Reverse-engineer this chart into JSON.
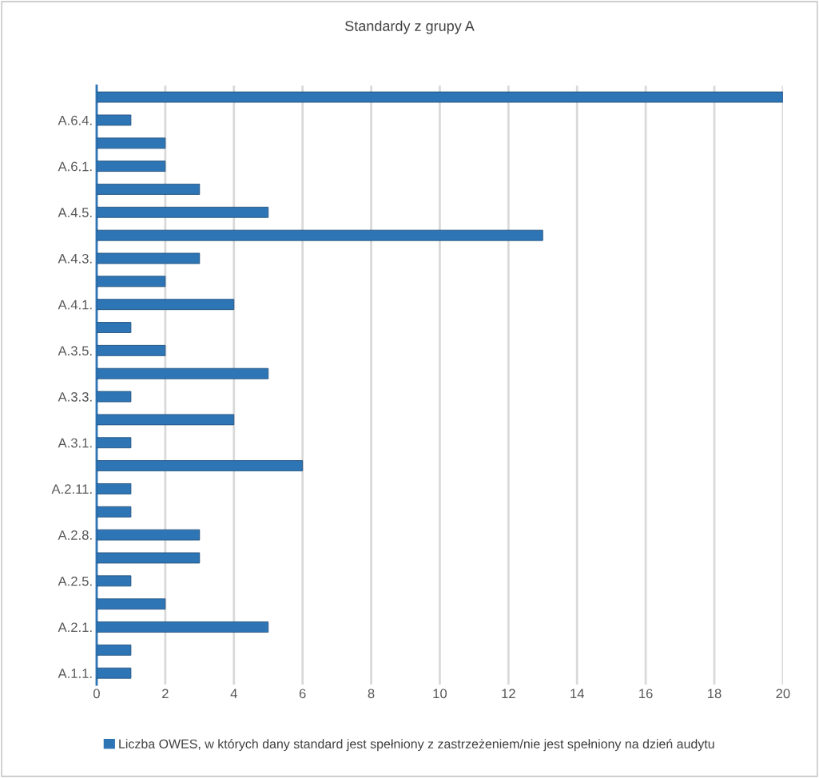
{
  "chart_data": {
    "type": "bar",
    "orientation": "horizontal",
    "title": "Standardy z grupy A",
    "categories": [
      null,
      "A.6.4.",
      null,
      "A.6.1.",
      null,
      "A.4.5.",
      null,
      "A.4.3.",
      null,
      "A.4.1.",
      null,
      "A.3.5.",
      null,
      "A.3.3.",
      null,
      "A.3.1.",
      null,
      "A.2.11.",
      null,
      "A.2.8.",
      null,
      "A.2.5.",
      null,
      "A.2.1.",
      null,
      "A.1.1."
    ],
    "series": [
      {
        "name": "Liczba OWES, w których dany standard jest spełniony z zastrzeżeniem/nie jest spełniony na dzień audytu",
        "color": "#2e75b6",
        "values": [
          20,
          1,
          2,
          2,
          3,
          5,
          13,
          3,
          2,
          4,
          1,
          2,
          5,
          1,
          4,
          1,
          6,
          1,
          1,
          3,
          3,
          1,
          2,
          5,
          1,
          1
        ]
      }
    ],
    "xlim": [
      0,
      20
    ],
    "xticks": [
      0,
      2,
      4,
      6,
      8,
      10,
      12,
      14,
      16,
      18,
      20
    ],
    "grid": "x",
    "legend": "bottom"
  }
}
